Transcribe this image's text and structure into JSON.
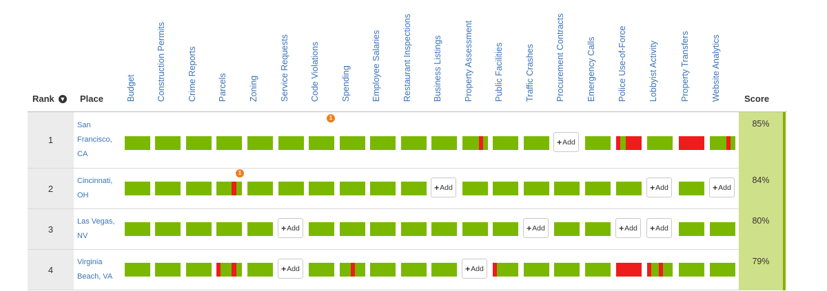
{
  "header": {
    "rank_label": "Rank",
    "place_label": "Place",
    "score_label": "Score",
    "sort_icon": "arrow-down-circle-icon"
  },
  "columns": [
    "Budget",
    "Construction Permits",
    "Crime Reports",
    "Parcels",
    "Zoning",
    "Service Requests",
    "Code Violations",
    "Spending",
    "Employee Salaries",
    "Restaurant Inspections",
    "Business Listings",
    "Property Assessment",
    "Public Facilities",
    "Traffic Crashes",
    "Procurement Contracts",
    "Emergency Calls",
    "Police Use-of-Force",
    "Lobbyist Activity",
    "Property Transfers",
    "Website Analytics"
  ],
  "add_label": "Add",
  "colors": {
    "green": "#7ab800",
    "red": "#ee1c1c",
    "score_bg": "#cfe08a",
    "link": "#3a73b8",
    "badge": "#f07e1a"
  },
  "rows": [
    {
      "rank": "1",
      "place": "San Francisco, CA",
      "score": "85%",
      "cells": [
        "full",
        "full",
        "full",
        "full",
        "full",
        "full",
        "full",
        "full",
        "full",
        "full",
        "full",
        "partial",
        "full",
        "full",
        "add",
        "full",
        "partial",
        "full",
        "fail",
        "partial"
      ],
      "badge": {
        "column": 6,
        "text": "1"
      }
    },
    {
      "rank": "2",
      "place": "Cincinnati, OH",
      "score": "84%",
      "cells": [
        "full",
        "full",
        "full",
        "partial",
        "full",
        "full",
        "full",
        "full",
        "full",
        "full",
        "add",
        "full",
        "full",
        "full",
        "full",
        "full",
        "full",
        "add",
        "full",
        "add"
      ],
      "badge": {
        "column": 3,
        "text": "1"
      }
    },
    {
      "rank": "3",
      "place": "Las Vegas, NV",
      "score": "80%",
      "cells": [
        "full",
        "full",
        "full",
        "full",
        "full",
        "add",
        "full",
        "full",
        "full",
        "full",
        "full",
        "full",
        "full",
        "add",
        "full",
        "full",
        "add",
        "add",
        "full",
        "full"
      ]
    },
    {
      "rank": "4",
      "place": "Virginia Beach, VA",
      "score": "79%",
      "cells": [
        "full",
        "full",
        "full",
        "partial",
        "full",
        "add",
        "full",
        "partial",
        "full",
        "full",
        "full",
        "add",
        "partial",
        "full",
        "full",
        "full",
        "fail",
        "partial",
        "full",
        "full"
      ]
    }
  ]
}
